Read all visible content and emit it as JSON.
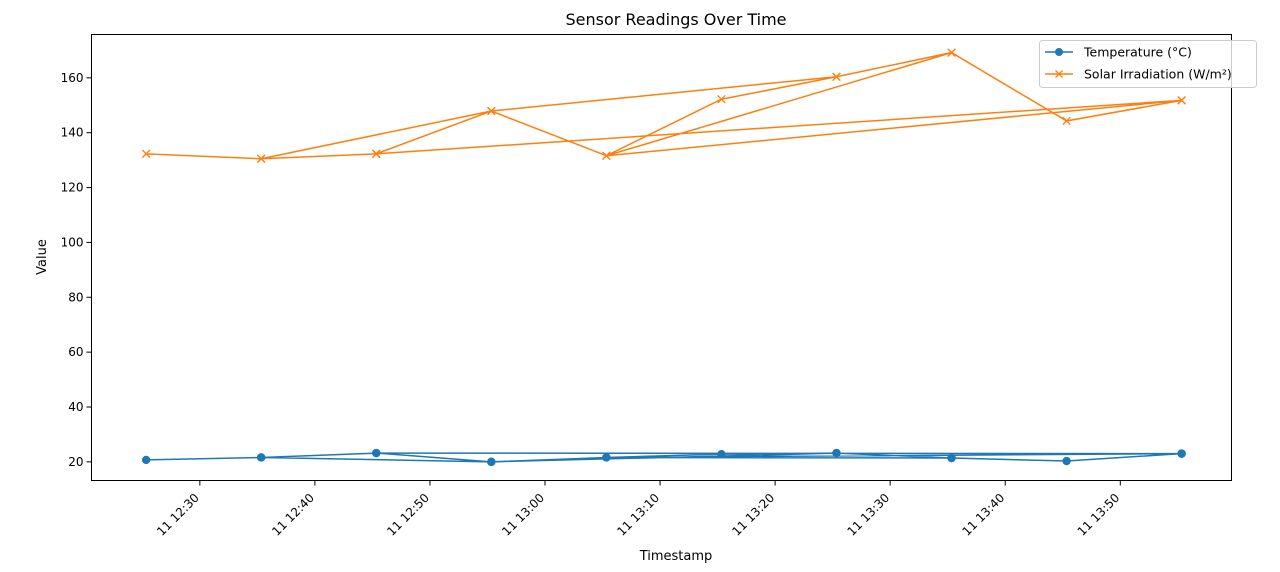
{
  "chart_data": {
    "type": "line",
    "title": "Sensor Readings Over Time",
    "xlabel": "Timestamp",
    "ylabel": "Value",
    "x_tick_labels": [
      "11 12:30",
      "11 12:40",
      "11 12:50",
      "11 13:00",
      "11 13:10",
      "11 13:20",
      "11 13:30",
      "11 13:40",
      "11 13:50"
    ],
    "y_ticks": [
      20,
      40,
      60,
      80,
      100,
      120,
      140,
      160
    ],
    "xlim": [
      "12:20:35",
      "13:59:40"
    ],
    "ylim": [
      13.2,
      175.8
    ],
    "legend_position": "upper right",
    "grid": false,
    "x": [
      "12:25:20",
      "12:35:20",
      "12:45:20",
      "12:55:20",
      "13:05:20",
      "13:15:20",
      "13:25:20",
      "13:35:20",
      "13:45:20",
      "13:55:20",
      "12:45:20",
      "12:35:20",
      "12:55:20",
      "13:25:20",
      "13:35:20",
      "13:05:20",
      "13:55:20"
    ],
    "series": [
      {
        "name": "Temperature (°C)",
        "color": "#1f77b4",
        "marker": "circle",
        "values": [
          20.7,
          21.6,
          23.2,
          20.0,
          21.6,
          22.8,
          23.2,
          21.4,
          20.3,
          23.0,
          23.2,
          21.6,
          20.0,
          23.2,
          21.4,
          21.6,
          23.0
        ]
      },
      {
        "name": "Solar Irradiation (W/m²)",
        "color": "#ff7f0e",
        "marker": "x",
        "values": [
          132.3,
          130.5,
          132.3,
          147.9,
          131.6,
          152.2,
          160.4,
          169.2,
          144.3,
          151.8,
          132.3,
          130.5,
          147.9,
          160.4,
          169.2,
          131.6,
          151.8
        ]
      }
    ]
  }
}
